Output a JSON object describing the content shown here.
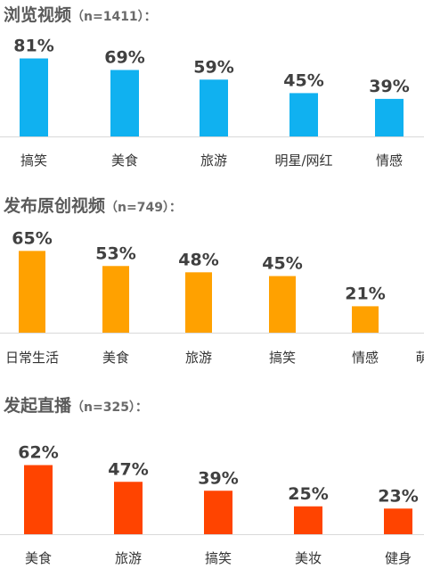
{
  "chart_data": [
    {
      "type": "bar",
      "title": "浏览视频",
      "sample_size": "（n=1411）：",
      "categories": [
        "搞笑",
        "美食",
        "旅游",
        "明星/网红",
        "情感"
      ],
      "values": [
        81,
        69,
        59,
        45,
        39
      ],
      "value_labels": [
        "81%",
        "69%",
        "59%",
        "45%",
        "39%"
      ],
      "color": "#10B1F0",
      "ylim": [
        0,
        100
      ]
    },
    {
      "type": "bar",
      "title": "发布原创视频",
      "sample_size": "（n=749）：",
      "categories": [
        "日常生活",
        "美食",
        "旅游",
        "搞笑",
        "情感",
        "萌"
      ],
      "values": [
        65,
        53,
        48,
        45,
        21,
        null
      ],
      "value_labels": [
        "65%",
        "53%",
        "48%",
        "45%",
        "21%",
        ""
      ],
      "color": "#FFA100",
      "ylim": [
        0,
        100
      ]
    },
    {
      "type": "bar",
      "title": "发起直播",
      "sample_size": "（n=325）：",
      "categories": [
        "美食",
        "旅游",
        "搞笑",
        "美妆",
        "健身"
      ],
      "values": [
        62,
        47,
        39,
        25,
        23
      ],
      "value_labels": [
        "62%",
        "47%",
        "39%",
        "25%",
        "23%"
      ],
      "color": "#FF4400",
      "ylim": [
        0,
        100
      ]
    }
  ]
}
